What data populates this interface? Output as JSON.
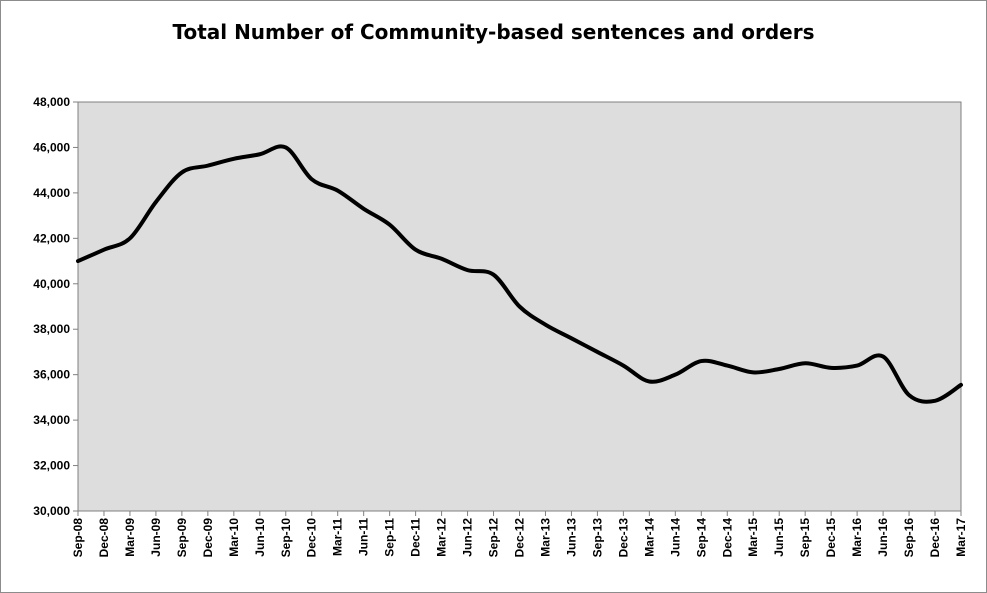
{
  "chart_data": {
    "type": "line",
    "title": "Total Number of Community-based sentences and orders",
    "xlabel": "",
    "ylabel": "",
    "ylim": [
      30000,
      48000
    ],
    "y_ticks": [
      "30,000",
      "32,000",
      "34,000",
      "36,000",
      "38,000",
      "40,000",
      "42,000",
      "44,000",
      "46,000",
      "48,000"
    ],
    "categories": [
      "Sep-08",
      "Dec-08",
      "Mar-09",
      "Jun-09",
      "Sep-09",
      "Dec-09",
      "Mar-10",
      "Jun-10",
      "Sep-10",
      "Dec-10",
      "Mar-11",
      "Jun-11",
      "Sep-11",
      "Dec-11",
      "Mar-12",
      "Jun-12",
      "Sep-12",
      "Dec-12",
      "Mar-13",
      "Jun-13",
      "Sep-13",
      "Dec-13",
      "Mar-14",
      "Jun-14",
      "Sep-14",
      "Dec-14",
      "Mar-15",
      "Jun-15",
      "Sep-15",
      "Dec-15",
      "Mar-16",
      "Jun-16",
      "Sep-16",
      "Dec-16",
      "Mar-17"
    ],
    "series": [
      {
        "values": [
          41000,
          41500,
          42000,
          43600,
          44900,
          45200,
          45500,
          45700,
          46000,
          44600,
          44100,
          43300,
          42600,
          41500,
          41100,
          40600,
          40400,
          39000,
          38200,
          37600,
          37000,
          36400,
          35700,
          36000,
          36600,
          36400,
          36100,
          36250,
          36500,
          36300,
          36400,
          36800,
          35100,
          34850,
          35550
        ]
      }
    ],
    "grid": false,
    "plot_background": "#dddddd",
    "line_color": "#000000"
  }
}
